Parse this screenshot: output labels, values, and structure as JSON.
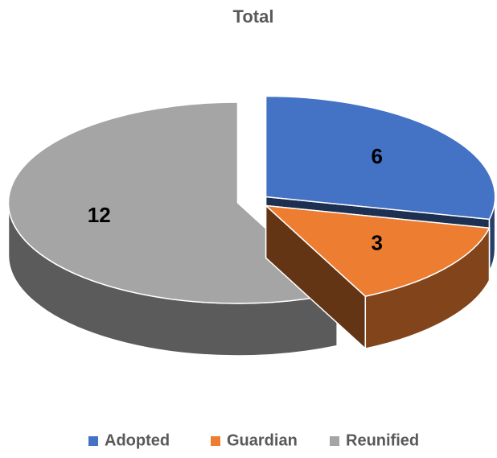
{
  "chart_data": {
    "type": "pie",
    "title": "Total",
    "categories": [
      "Adopted",
      "Guardian",
      "Reunified"
    ],
    "values": [
      6,
      3,
      12
    ],
    "colors": [
      "#4472c4",
      "#ed7d31",
      "#a5a5a5"
    ],
    "legend": "bottom"
  }
}
